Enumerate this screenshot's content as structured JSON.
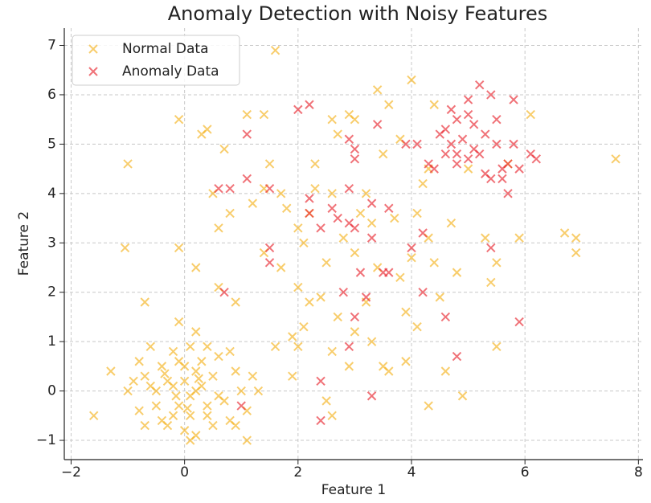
{
  "chart_data": {
    "type": "scatter",
    "title": "Anomaly Detection with Noisy Features",
    "x_label": "Feature 1",
    "y_label": "Feature 2",
    "xlim": [
      -2.12,
      8.08
    ],
    "ylim": [
      -1.39,
      7.35
    ],
    "xticks": [
      {
        "value": -2,
        "label": "−2"
      },
      0,
      2,
      4,
      6,
      8
    ],
    "yticks": [
      {
        "value": -1,
        "label": "−1"
      },
      0,
      1,
      2,
      3,
      4,
      5,
      6,
      7
    ],
    "grid": true,
    "legend": "upper left",
    "series": [
      {
        "name": "Normal Data",
        "color": "#f5b21d",
        "x": [
          -0.3,
          0.1,
          -0.5,
          0.2,
          0.4,
          -0.1,
          0.0,
          0.3,
          -0.2,
          0.5,
          -0.6,
          0.7,
          -0.4,
          0.1,
          0.2,
          -0.8,
          0.9,
          -0.7,
          0.6,
          -0.3,
          0.4,
          0.0,
          -0.1,
          0.2,
          -0.2,
          0.1,
          0.3,
          -0.5,
          0.8,
          -0.9,
          1.0,
          1.1,
          1.1,
          -1.0,
          -1.3,
          -1.6,
          0.1,
          -0.1,
          0.2,
          0.8,
          -0.6,
          0.5,
          -0.4,
          0.0,
          0.6,
          -0.7,
          0.9,
          1.3,
          0.4,
          -0.2,
          -0.8,
          1.2,
          0.05,
          -0.15,
          0.25,
          -0.35,
          -0.7,
          -1.0,
          -1.05,
          -0.1,
          -0.1,
          0.2,
          0.4,
          0.3,
          0.7,
          0.8,
          0.6,
          0.5,
          0.9,
          0.6,
          1.1,
          1.4,
          1.6,
          1.5,
          1.4,
          1.2,
          1.4,
          1.7,
          1.8,
          1.7,
          1.6,
          1.9,
          2.0,
          1.9,
          2.0,
          2.1,
          2.2,
          2.3,
          2.2,
          2.1,
          2.4,
          2.5,
          2.6,
          2.7,
          2.6,
          2.8,
          2.7,
          2.6,
          2.5,
          2.6,
          2.9,
          3.0,
          3.0,
          3.1,
          2.9,
          3.0,
          3.2,
          3.3,
          3.4,
          3.2,
          3.3,
          3.5,
          3.6,
          3.4,
          3.6,
          3.8,
          3.7,
          3.8,
          3.9,
          3.9,
          4.0,
          4.1,
          4.0,
          4.1,
          4.3,
          4.4,
          4.3,
          4.4,
          4.3,
          4.5,
          4.6,
          4.7,
          4.8,
          4.9,
          5.0,
          5.3,
          5.4,
          5.5,
          5.5,
          5.7,
          5.9,
          6.1,
          6.7,
          6.9,
          6.9,
          7.6,
          2.0,
          2.3,
          3.5,
          4.2
        ],
        "values": [
          0.2,
          -0.1,
          -0.3,
          0.4,
          -0.5,
          0.6,
          -0.8,
          0.1,
          -0.5,
          0.3,
          0.1,
          -0.2,
          0.5,
          0.9,
          -0.9,
          -0.4,
          0.4,
          0.3,
          0.7,
          -0.7,
          -0.3,
          0.2,
          -0.3,
          0.0,
          0.1,
          -0.5,
          0.6,
          0.0,
          -0.6,
          0.2,
          0.0,
          -0.4,
          -1.0,
          0.0,
          0.4,
          -0.5,
          -1.0,
          1.4,
          1.2,
          0.8,
          0.9,
          -0.7,
          -0.6,
          0.5,
          -0.1,
          -0.7,
          -0.7,
          0.0,
          0.9,
          0.8,
          0.6,
          0.3,
          -0.35,
          -0.1,
          0.25,
          0.35,
          1.8,
          4.6,
          2.9,
          5.5,
          2.9,
          2.5,
          5.3,
          5.2,
          4.9,
          3.6,
          3.3,
          4.0,
          1.8,
          2.1,
          5.6,
          5.6,
          6.9,
          4.6,
          4.1,
          3.8,
          2.8,
          2.5,
          3.7,
          4.0,
          0.9,
          1.1,
          0.9,
          0.3,
          2.1,
          3.0,
          3.6,
          4.6,
          1.8,
          1.3,
          1.9,
          2.6,
          5.5,
          5.2,
          4.0,
          3.1,
          1.5,
          0.8,
          -0.2,
          -0.5,
          0.5,
          1.2,
          2.8,
          3.6,
          5.6,
          5.5,
          4.0,
          3.4,
          2.5,
          1.8,
          1.0,
          0.5,
          0.4,
          6.1,
          5.8,
          5.1,
          3.5,
          2.3,
          1.6,
          0.6,
          6.3,
          3.6,
          2.7,
          1.3,
          3.1,
          5.8,
          4.5,
          2.6,
          -0.3,
          1.9,
          0.4,
          3.4,
          2.4,
          -0.1,
          4.5,
          3.1,
          2.2,
          0.9,
          2.6,
          4.6,
          3.1,
          5.6,
          3.2,
          2.8,
          3.1,
          4.7,
          3.3,
          4.1,
          4.8,
          4.2
        ]
      },
      {
        "name": "Anomaly Data",
        "color": "#e8262f",
        "x": [
          4.7,
          4.8,
          5.0,
          5.2,
          5.4,
          5.1,
          4.9,
          5.3,
          5.5,
          5.7,
          5.8,
          5.8,
          6.1,
          6.2,
          5.9,
          5.6,
          5.7,
          5.4,
          5.1,
          4.8,
          4.6,
          4.5,
          4.3,
          4.4,
          5.0,
          5.2,
          5.5,
          5.0,
          4.6,
          4.8,
          4.7,
          4.1,
          5.6,
          5.3,
          0.6,
          0.8,
          1.1,
          1.1,
          0.7,
          1.0,
          1.5,
          1.5,
          1.5,
          2.0,
          2.2,
          2.2,
          2.2,
          2.4,
          2.6,
          2.7,
          2.9,
          3.0,
          3.0,
          2.9,
          2.9,
          3.0,
          3.3,
          3.3,
          3.4,
          3.6,
          3.6,
          3.5,
          3.2,
          3.0,
          3.1,
          2.9,
          2.8,
          3.3,
          2.4,
          2.4,
          3.9,
          4.0,
          4.2,
          4.6,
          4.8,
          5.4,
          5.9,
          4.2
        ],
        "values": [
          5.7,
          5.5,
          5.9,
          6.2,
          6.0,
          5.4,
          5.1,
          5.2,
          5.0,
          4.6,
          5.9,
          5.0,
          4.8,
          4.7,
          4.5,
          4.3,
          4.0,
          4.3,
          4.9,
          4.8,
          4.8,
          5.2,
          4.6,
          4.5,
          4.7,
          4.8,
          5.5,
          5.6,
          5.3,
          4.6,
          5.0,
          5.0,
          4.5,
          4.4,
          4.1,
          4.1,
          5.2,
          4.3,
          2.0,
          -0.3,
          4.1,
          2.9,
          2.6,
          5.7,
          5.8,
          3.9,
          3.6,
          3.3,
          3.7,
          3.5,
          5.1,
          4.9,
          4.7,
          4.1,
          3.4,
          3.3,
          3.8,
          3.1,
          5.4,
          3.7,
          2.4,
          2.4,
          1.9,
          1.5,
          2.4,
          0.9,
          2.0,
          -0.1,
          0.2,
          -0.6,
          5.0,
          2.9,
          2.0,
          1.5,
          0.7,
          2.9,
          1.4,
          3.2
        ]
      }
    ]
  }
}
